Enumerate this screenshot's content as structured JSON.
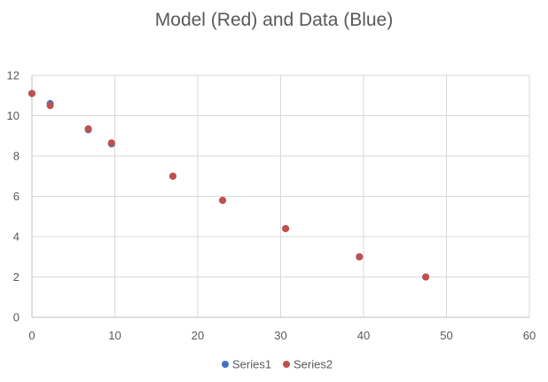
{
  "chart_data": {
    "type": "scatter",
    "title": "Model (Red) and Data (Blue)",
    "xlabel": "",
    "ylabel": "",
    "xlim": [
      0,
      60
    ],
    "ylim": [
      0,
      12
    ],
    "x_ticks": [
      0,
      10,
      20,
      30,
      40,
      50,
      60
    ],
    "y_ticks": [
      0,
      2,
      4,
      6,
      8,
      10,
      12
    ],
    "grid": true,
    "legend_position": "bottom",
    "series": [
      {
        "name": "Series1",
        "color": "#4472C4",
        "points": [
          {
            "x": 0,
            "y": 11.1
          },
          {
            "x": 2.2,
            "y": 10.6
          },
          {
            "x": 6.8,
            "y": 9.3
          },
          {
            "x": 9.6,
            "y": 8.6
          },
          {
            "x": 17.0,
            "y": 7.0
          },
          {
            "x": 23.0,
            "y": 5.8
          },
          {
            "x": 30.6,
            "y": 4.4
          },
          {
            "x": 39.5,
            "y": 3.0
          },
          {
            "x": 47.5,
            "y": 2.0
          }
        ]
      },
      {
        "name": "Series2",
        "color": "#C0504D",
        "points": [
          {
            "x": 0,
            "y": 11.1
          },
          {
            "x": 2.2,
            "y": 10.5
          },
          {
            "x": 6.8,
            "y": 9.35
          },
          {
            "x": 9.6,
            "y": 8.65
          },
          {
            "x": 17.0,
            "y": 7.0
          },
          {
            "x": 23.0,
            "y": 5.8
          },
          {
            "x": 30.6,
            "y": 4.4
          },
          {
            "x": 39.5,
            "y": 3.0
          },
          {
            "x": 47.5,
            "y": 2.0
          }
        ]
      }
    ]
  }
}
